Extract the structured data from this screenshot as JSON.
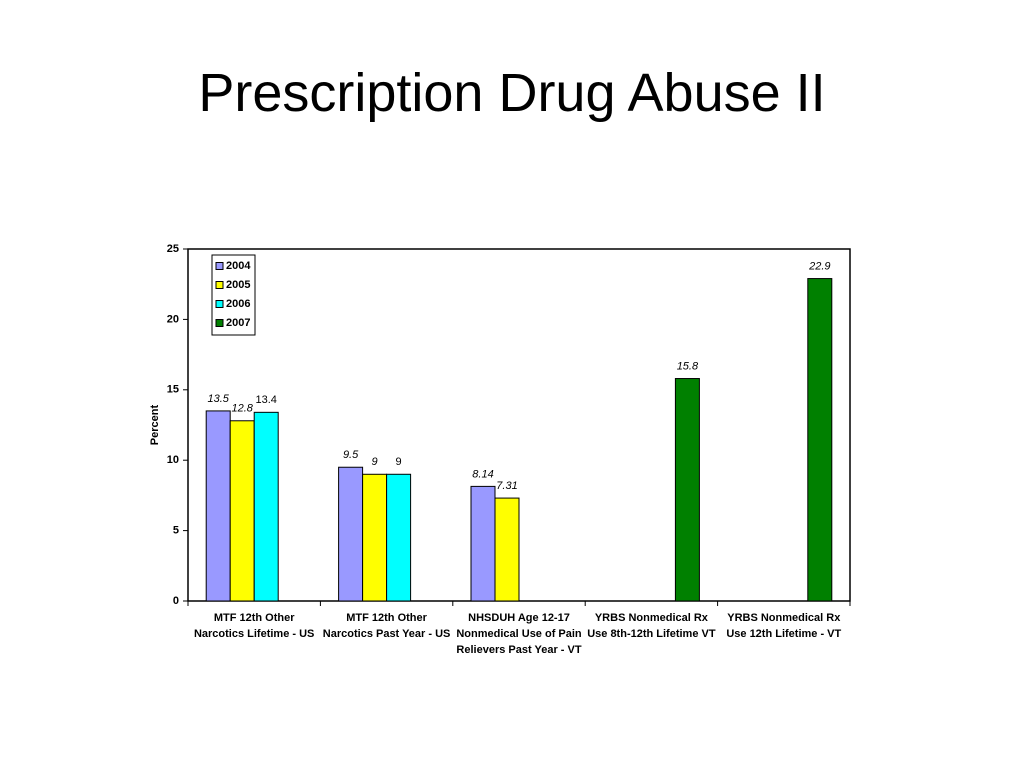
{
  "title": "Prescription Drug Abuse II",
  "chart_data": {
    "type": "bar",
    "ylabel": "Percent",
    "categories": [
      "MTF 12th Other Narcotics Lifetime - US",
      "MTF 12th Other Narcotics Past Year - US",
      "NHSDUH Age 12-17 Nonmedical Use of Pain Relievers Past Year - VT",
      "YRBS Nonmedical Rx Use 8th-12th Lifetime VT",
      "YRBS Nonmedical Rx Use 12th Lifetime - VT"
    ],
    "series": [
      {
        "name": "2004",
        "color": "#9999ff",
        "label_italic": true,
        "values": [
          13.5,
          9.5,
          8.14,
          null,
          null
        ]
      },
      {
        "name": "2005",
        "color": "#ffff00",
        "label_italic": true,
        "values": [
          12.8,
          9,
          7.31,
          null,
          null
        ]
      },
      {
        "name": "2006",
        "color": "#00ffff",
        "label_italic": false,
        "values": [
          13.4,
          9,
          null,
          null,
          null
        ]
      },
      {
        "name": "2007",
        "color": "#008000",
        "label_italic": true,
        "values": [
          null,
          null,
          null,
          15.8,
          22.9
        ]
      }
    ],
    "ylim": [
      0,
      25
    ],
    "yticks": [
      0,
      5,
      10,
      15,
      20,
      25
    ],
    "grid": false,
    "legend": "upper left"
  }
}
